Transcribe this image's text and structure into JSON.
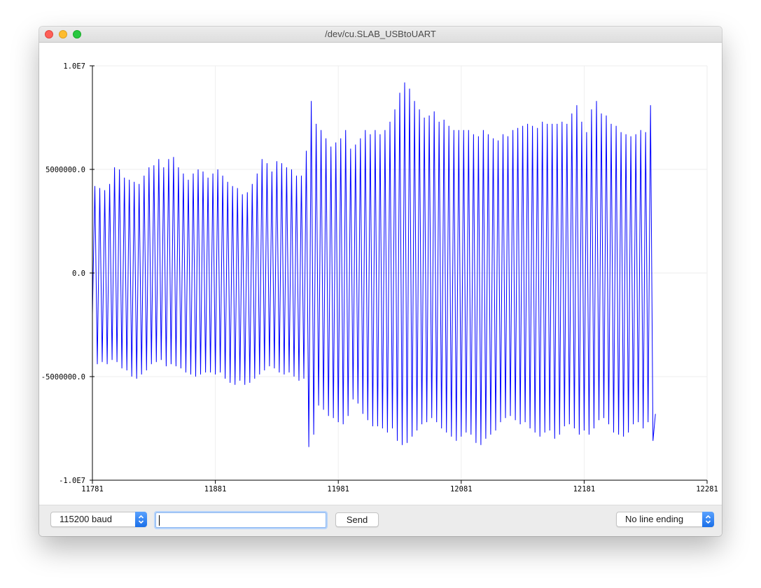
{
  "window": {
    "title": "/dev/cu.SLAB_USBtoUART"
  },
  "chart_data": {
    "type": "line",
    "xlim": [
      11781,
      12281
    ],
    "ylim": [
      -10000000,
      10000000
    ],
    "x_ticks": [
      "11781",
      "11881",
      "11981",
      "12081",
      "12181",
      "12281"
    ],
    "y_ticks": [
      "1.0E7",
      "5000000.0",
      "0.0",
      "-5000000.0",
      "-1.0E7"
    ],
    "grid": true,
    "series": [
      {
        "color": "#0000ff",
        "x_start": 11781,
        "x_step": 2,
        "values": [
          -2000000,
          4200000,
          -4400000,
          4100000,
          -4300000,
          4000000,
          -4400000,
          4300000,
          -4200000,
          5100000,
          -4300000,
          5000000,
          -4600000,
          4600000,
          -4700000,
          4500000,
          -5000000,
          4400000,
          -5100000,
          4300000,
          -4900000,
          4700000,
          -4700000,
          5100000,
          -4400000,
          5200000,
          -4300000,
          5500000,
          -4200000,
          5100000,
          -4500000,
          5500000,
          -4400000,
          5600000,
          -4500000,
          5100000,
          -4600000,
          4800000,
          -4800000,
          4500000,
          -4900000,
          4800000,
          -5000000,
          5000000,
          -4900000,
          4900000,
          -4800000,
          4600000,
          -4800000,
          4800000,
          -4900000,
          5000000,
          -4800000,
          4700000,
          -5100000,
          4400000,
          -5300000,
          4200000,
          -5400000,
          4100000,
          -5200000,
          3800000,
          -5400000,
          3900000,
          -5300000,
          4300000,
          -5100000,
          4800000,
          -4900000,
          5500000,
          -4700000,
          5300000,
          -4500000,
          4900000,
          -4600000,
          5400000,
          -4800000,
          5300000,
          -4900000,
          5100000,
          -4800000,
          5000000,
          -5000000,
          4700000,
          -5200000,
          4700000,
          -5100000,
          5900000,
          -8400000,
          8300000,
          -7800000,
          7200000,
          -6400000,
          6900000,
          -6600000,
          6500000,
          -6900000,
          6100000,
          -7000000,
          6300000,
          -7200000,
          6500000,
          -7300000,
          6900000,
          -6900000,
          6000000,
          -6100000,
          6200000,
          -6300000,
          6500000,
          -6800000,
          6900000,
          -7100000,
          6700000,
          -7400000,
          6900000,
          -7400000,
          6700000,
          -7500000,
          6900000,
          -7700000,
          7300000,
          -7500000,
          7900000,
          -8100000,
          8700000,
          -8300000,
          9200000,
          -8200000,
          8900000,
          -7900000,
          8300000,
          -7600000,
          7900000,
          -7300000,
          7500000,
          -7200000,
          7600000,
          -7000000,
          7800000,
          -7200000,
          7300000,
          -7500000,
          7400000,
          -7700000,
          7100000,
          -7900000,
          6900000,
          -8100000,
          6900000,
          -7900000,
          6900000,
          -7700000,
          6900000,
          -7800000,
          6700000,
          -8200000,
          6600000,
          -8300000,
          6900000,
          -8000000,
          6700000,
          -7800000,
          6500000,
          -7600000,
          6400000,
          -7200000,
          6700000,
          -7000000,
          6600000,
          -6900000,
          6900000,
          -7100000,
          7000000,
          -7300000,
          7100000,
          -7200000,
          7200000,
          -7500000,
          7100000,
          -7700000,
          7000000,
          -7900000,
          7300000,
          -7700000,
          7200000,
          -7600000,
          7200000,
          -8000000,
          7200000,
          -7800000,
          7300000,
          -7400000,
          7200000,
          -7300000,
          7700000,
          -7500000,
          8100000,
          -7800000,
          7300000,
          -7600000,
          6800000,
          -7800000,
          7900000,
          -7500000,
          8300000,
          -7100000,
          7700000,
          -7000000,
          7600000,
          -7300000,
          7200000,
          -7700000,
          7100000,
          -7800000,
          6800000,
          -7900000,
          6700000,
          -7700000,
          6600000,
          -7300000,
          6700000,
          -7200000,
          6900000,
          -7500000,
          6800000,
          -7200000,
          8100000,
          -8100000,
          -6800000
        ]
      }
    ]
  },
  "controls": {
    "baud_rate": "115200 baud",
    "message_input_value": "",
    "send_label": "Send",
    "line_ending": "No line ending"
  }
}
